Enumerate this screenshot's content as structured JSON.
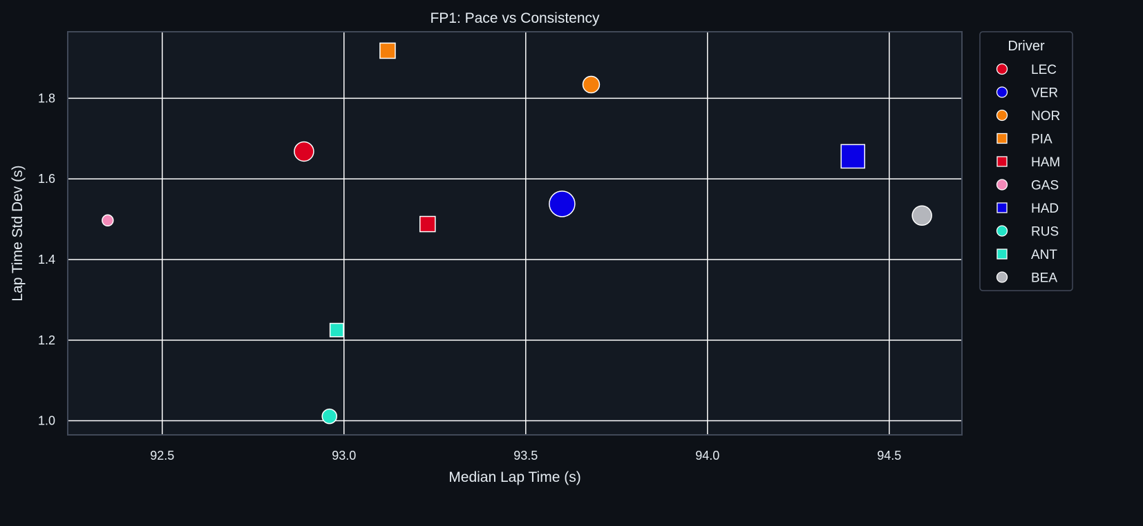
{
  "chart_data": {
    "type": "scatter",
    "title": "FP1: Pace vs Consistency",
    "xlabel": "Median Lap Time (s)",
    "ylabel": "Lap Time Std Dev (s)",
    "xlim": [
      92.24,
      94.7
    ],
    "ylim": [
      0.965,
      1.965
    ],
    "xticks": [
      92.5,
      93.0,
      93.5,
      94.0,
      94.5
    ],
    "xtick_labels": [
      "92.5",
      "93.0",
      "93.5",
      "94.0",
      "94.5"
    ],
    "yticks": [
      1.0,
      1.2,
      1.4,
      1.6,
      1.8
    ],
    "ytick_labels": [
      "1.0",
      "1.2",
      "1.4",
      "1.6",
      "1.8"
    ],
    "grid": true,
    "legend": {
      "title": "Driver",
      "placement": "outside-right"
    },
    "colors": {
      "page_background": "#0d1117",
      "plot_background": "#131922",
      "grid": "#ffffff",
      "spine": "#414958",
      "text": "#e6edf3"
    },
    "series": [
      {
        "name": "LEC",
        "marker": "circle",
        "color": "#dc0020",
        "x": 92.89,
        "y": 1.668,
        "size_level": 3
      },
      {
        "name": "VER",
        "marker": "circle",
        "color": "#0a00e6",
        "x": 93.6,
        "y": 1.538,
        "size_level": 5
      },
      {
        "name": "NOR",
        "marker": "circle",
        "color": "#f57f0a",
        "x": 93.68,
        "y": 1.834,
        "size_level": 2
      },
      {
        "name": "PIA",
        "marker": "square",
        "color": "#f57f0a",
        "x": 93.12,
        "y": 1.918,
        "size_level": 2
      },
      {
        "name": "HAM",
        "marker": "square",
        "color": "#dc0020",
        "x": 93.23,
        "y": 1.488,
        "size_level": 2
      },
      {
        "name": "GAS",
        "marker": "circle",
        "color": "#f38ab9",
        "x": 92.35,
        "y": 1.497,
        "size_level": 0
      },
      {
        "name": "HAD",
        "marker": "square",
        "color": "#0a00e6",
        "x": 94.4,
        "y": 1.656,
        "size_level": 5
      },
      {
        "name": "RUS",
        "marker": "circle",
        "color": "#22e4c6",
        "x": 92.96,
        "y": 1.011,
        "size_level": 1
      },
      {
        "name": "ANT",
        "marker": "square",
        "color": "#22e4c6",
        "x": 92.98,
        "y": 1.225,
        "size_level": 1
      },
      {
        "name": "BEA",
        "marker": "circle",
        "color": "#b4b6bc",
        "x": 94.59,
        "y": 1.509,
        "size_level": 3
      }
    ]
  }
}
